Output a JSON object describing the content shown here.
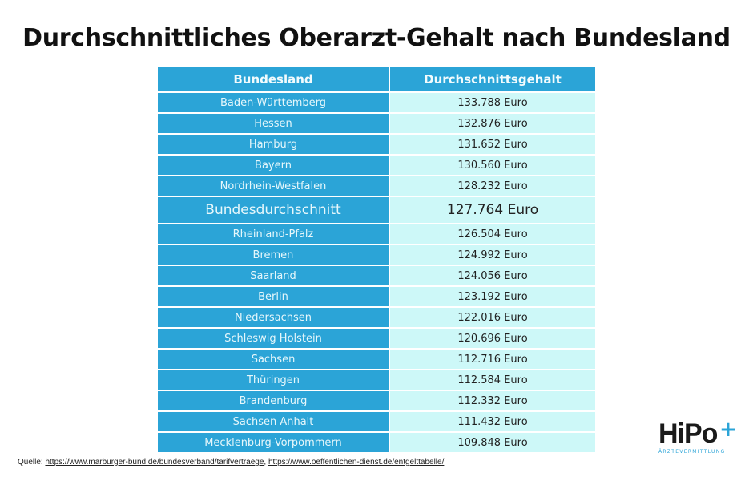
{
  "title": "Durchschnittliches Oberarzt-Gehalt nach Bundesland",
  "table": {
    "headers": [
      "Bundesland",
      "Durchschnittsgehalt"
    ],
    "rows": [
      [
        "Baden-Württemberg",
        "133.788 Euro"
      ],
      [
        "Hessen",
        "132.876 Euro"
      ],
      [
        "Hamburg",
        "131.652 Euro"
      ],
      [
        "Bayern",
        "130.560 Euro"
      ],
      [
        "Nordrhein-Westfalen",
        "128.232 Euro"
      ],
      [
        "Bundesdurchschnitt",
        "127.764 Euro"
      ],
      [
        "Rheinland-Pfalz",
        "126.504 Euro"
      ],
      [
        "Bremen",
        "124.992 Euro"
      ],
      [
        "Saarland",
        "124.056 Euro"
      ],
      [
        "Berlin",
        "123.192 Euro"
      ],
      [
        "Niedersachsen",
        "122.016 Euro"
      ],
      [
        "Schleswig Holstein",
        "120.696 Euro"
      ],
      [
        "Sachsen",
        "112.716 Euro"
      ],
      [
        "Thüringen",
        "112.584 Euro"
      ],
      [
        "Brandenburg",
        "112.332 Euro"
      ],
      [
        "Sachsen Anhalt",
        "111.432 Euro"
      ],
      [
        "Mecklenburg-Vorpommern",
        "109.848 Euro"
      ]
    ],
    "highlight_row": "Bundesdurchschnitt"
  },
  "source": {
    "label": "Quelle:",
    "links": [
      "https://www.marburger-bund.de/bundesverband/tarifvertraege",
      "https://www.oeffentlichen-dienst.de/entgelttabelle/"
    ]
  },
  "logo": {
    "text": "HiPo",
    "plus": "+",
    "subtitle": "ÄRZTEVERMITTLUNG"
  },
  "colors": {
    "header": "#2ba4d7",
    "left_column": "#2ba4d7",
    "right_column": "#cdf8f8",
    "accent": "#2ba4d7"
  }
}
